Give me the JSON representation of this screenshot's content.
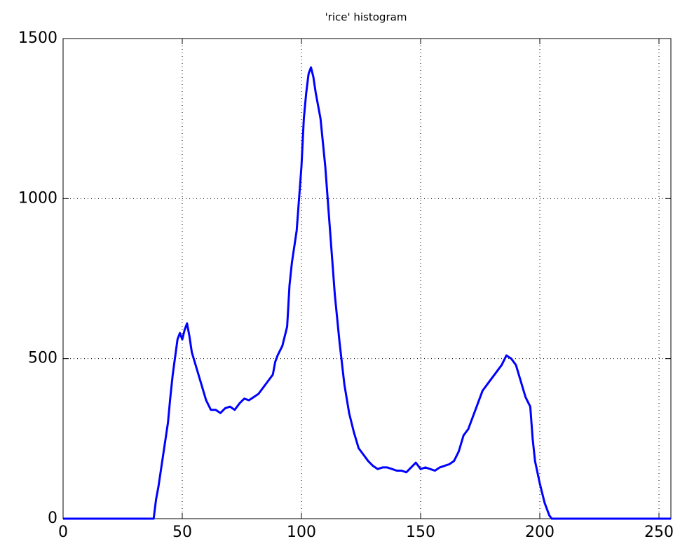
{
  "chart_data": {
    "type": "line",
    "title": "'rice' histogram",
    "x": [
      0,
      38,
      39,
      40,
      42,
      44,
      45,
      46,
      48,
      49,
      50,
      51,
      52,
      53,
      54,
      56,
      58,
      60,
      62,
      64,
      66,
      68,
      70,
      72,
      74,
      76,
      78,
      80,
      82,
      84,
      86,
      88,
      89,
      90,
      92,
      94,
      95,
      96,
      98,
      100,
      101,
      102,
      103,
      104,
      105,
      106,
      108,
      110,
      112,
      114,
      116,
      118,
      120,
      122,
      124,
      126,
      128,
      130,
      132,
      134,
      136,
      138,
      140,
      142,
      144,
      146,
      148,
      150,
      152,
      154,
      156,
      158,
      160,
      162,
      164,
      166,
      168,
      170,
      172,
      174,
      176,
      178,
      180,
      182,
      184,
      186,
      188,
      190,
      192,
      194,
      196,
      197,
      198,
      200,
      202,
      204,
      205,
      255
    ],
    "values": [
      0,
      0,
      60,
      100,
      200,
      300,
      380,
      450,
      560,
      580,
      560,
      590,
      610,
      570,
      520,
      470,
      420,
      370,
      340,
      340,
      330,
      345,
      350,
      340,
      360,
      375,
      370,
      380,
      390,
      410,
      430,
      450,
      490,
      510,
      540,
      600,
      730,
      800,
      900,
      1100,
      1250,
      1330,
      1390,
      1410,
      1380,
      1330,
      1250,
      1100,
      900,
      700,
      550,
      420,
      330,
      270,
      220,
      200,
      180,
      165,
      155,
      160,
      160,
      155,
      150,
      150,
      145,
      160,
      175,
      155,
      160,
      155,
      150,
      160,
      165,
      170,
      180,
      210,
      260,
      280,
      320,
      360,
      400,
      420,
      440,
      460,
      480,
      510,
      500,
      480,
      430,
      380,
      350,
      250,
      180,
      110,
      50,
      10,
      0,
      0
    ],
    "color": "#0000ff",
    "xlim": [
      0,
      255
    ],
    "xticks": [
      0,
      50,
      100,
      150,
      200,
      250
    ],
    "ylim": [
      0,
      1500
    ],
    "yticks": [
      0,
      500,
      1000,
      1500
    ],
    "grid": true
  }
}
